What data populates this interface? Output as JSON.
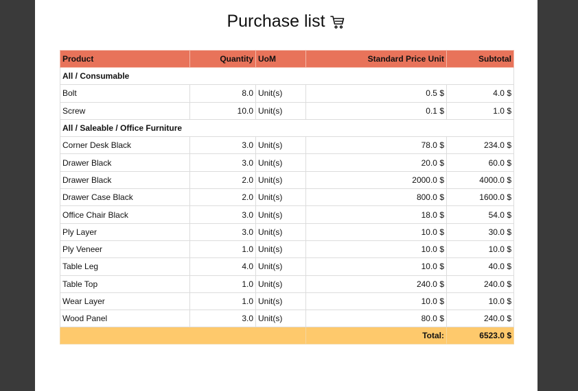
{
  "report": {
    "title": "Purchase list",
    "title_icon": "shopping-cart-icon",
    "columns": [
      "Product",
      "Quantity",
      "UoM",
      "Standard Price Unit",
      "Subtotal"
    ],
    "groups": [
      {
        "category": "All / Consumable",
        "rows": [
          {
            "product": "Bolt",
            "quantity": "8.0",
            "uom": "Unit(s)",
            "price": "0.5 $",
            "subtotal": "4.0 $"
          },
          {
            "product": "Screw",
            "quantity": "10.0",
            "uom": "Unit(s)",
            "price": "0.1 $",
            "subtotal": "1.0 $"
          }
        ]
      },
      {
        "category": "All / Saleable / Office Furniture",
        "rows": [
          {
            "product": "Corner Desk Black",
            "quantity": "3.0",
            "uom": "Unit(s)",
            "price": "78.0 $",
            "subtotal": "234.0 $"
          },
          {
            "product": "Drawer Black",
            "quantity": "3.0",
            "uom": "Unit(s)",
            "price": "20.0 $",
            "subtotal": "60.0 $"
          },
          {
            "product": "Drawer Black",
            "quantity": "2.0",
            "uom": "Unit(s)",
            "price": "2000.0 $",
            "subtotal": "4000.0 $"
          },
          {
            "product": "Drawer Case Black",
            "quantity": "2.0",
            "uom": "Unit(s)",
            "price": "800.0 $",
            "subtotal": "1600.0 $"
          },
          {
            "product": "Office Chair Black",
            "quantity": "3.0",
            "uom": "Unit(s)",
            "price": "18.0 $",
            "subtotal": "54.0 $"
          },
          {
            "product": "Ply Layer",
            "quantity": "3.0",
            "uom": "Unit(s)",
            "price": "10.0 $",
            "subtotal": "30.0 $"
          },
          {
            "product": "Ply Veneer",
            "quantity": "1.0",
            "uom": "Unit(s)",
            "price": "10.0 $",
            "subtotal": "10.0 $"
          },
          {
            "product": "Table Leg",
            "quantity": "4.0",
            "uom": "Unit(s)",
            "price": "10.0 $",
            "subtotal": "40.0 $"
          },
          {
            "product": "Table Top",
            "quantity": "1.0",
            "uom": "Unit(s)",
            "price": "240.0 $",
            "subtotal": "240.0 $"
          },
          {
            "product": "Wear Layer",
            "quantity": "1.0",
            "uom": "Unit(s)",
            "price": "10.0 $",
            "subtotal": "10.0 $"
          },
          {
            "product": "Wood Panel",
            "quantity": "3.0",
            "uom": "Unit(s)",
            "price": "80.0 $",
            "subtotal": "240.0 $"
          }
        ]
      }
    ],
    "total_label": "Total:",
    "total_value": "6523.0 $",
    "colors": {
      "header_bg": "#e8735a",
      "total_bg": "#fec96c",
      "viewer_bg": "#3a3a3a"
    }
  }
}
